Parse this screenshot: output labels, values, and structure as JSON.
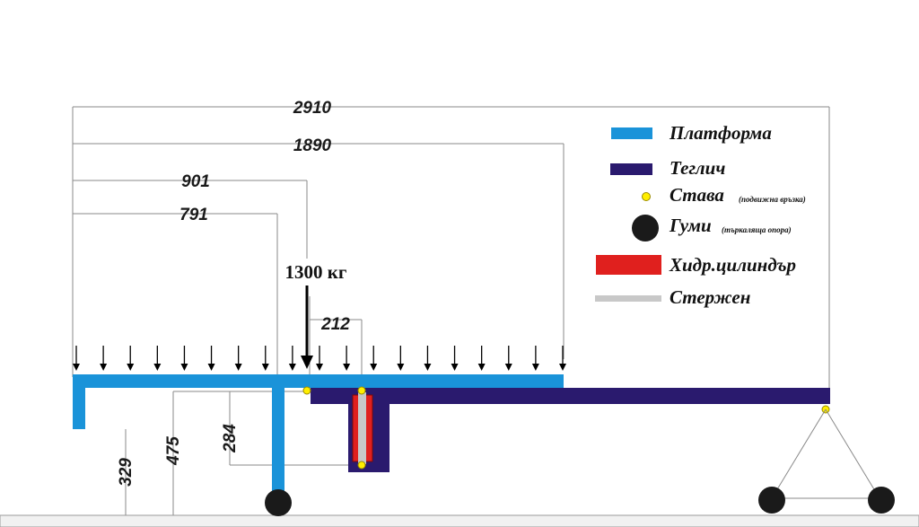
{
  "dimensions": {
    "total_length": "2910",
    "platform_length": "1890",
    "load_position": "901",
    "support_position": "791",
    "joint_offset": "212",
    "height_platform": "329",
    "height_platform_top": "475",
    "cylinder_height": "284"
  },
  "load": {
    "label": "1300 кг",
    "arrows_count": 19
  },
  "legend": {
    "platform": {
      "label": "Платформа",
      "color": "#1a93d9"
    },
    "tractor": {
      "label": "Теглич",
      "color": "#2a1a6e"
    },
    "joint": {
      "label": "Става",
      "note": "(подвижна връзка)",
      "color": "#ffee00"
    },
    "wheels": {
      "label": "Гуми",
      "note": "(търкаляща опора)",
      "color": "#1a1a1a"
    },
    "cylinder": {
      "label": "Хидр.цилиндър",
      "color": "#e0201e"
    },
    "rod": {
      "label": "Стержен",
      "color": "#c8c8c8"
    }
  }
}
